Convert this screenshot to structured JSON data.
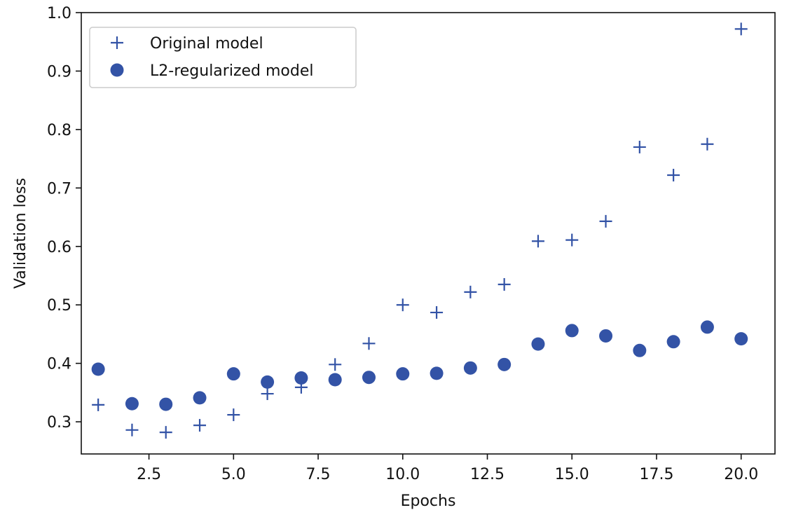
{
  "chart_data": {
    "type": "scatter",
    "xlabel": "Epochs",
    "ylabel": "Validation loss",
    "xlim": [
      0.5,
      21.0
    ],
    "ylim": [
      0.245,
      1.0
    ],
    "xticks": [
      2.5,
      5.0,
      7.5,
      10.0,
      12.5,
      15.0,
      17.5,
      20.0
    ],
    "xtick_labels": [
      "2.5",
      "5.0",
      "7.5",
      "10.0",
      "12.5",
      "15.0",
      "17.5",
      "20.0"
    ],
    "yticks": [
      0.3,
      0.4,
      0.5,
      0.6,
      0.7,
      0.8,
      0.9,
      1.0
    ],
    "ytick_labels": [
      "0.3",
      "0.4",
      "0.5",
      "0.6",
      "0.7",
      "0.8",
      "0.9",
      "1.0"
    ],
    "grid": false,
    "legend_position": "top-left",
    "colors": {
      "series": "#3353a6",
      "axes": "#111111"
    },
    "x": [
      1,
      2,
      3,
      4,
      5,
      6,
      7,
      8,
      9,
      10,
      11,
      12,
      13,
      14,
      15,
      16,
      17,
      18,
      19,
      20
    ],
    "series": [
      {
        "name": "Original model",
        "marker": "plus",
        "values": [
          0.329,
          0.286,
          0.282,
          0.294,
          0.312,
          0.348,
          0.359,
          0.398,
          0.434,
          0.5,
          0.487,
          0.522,
          0.535,
          0.609,
          0.611,
          0.643,
          0.77,
          0.722,
          0.775,
          0.972
        ]
      },
      {
        "name": "L2-regularized model",
        "marker": "circle",
        "values": [
          0.39,
          0.331,
          0.33,
          0.341,
          0.382,
          0.368,
          0.375,
          0.372,
          0.376,
          0.382,
          0.383,
          0.392,
          0.398,
          0.433,
          0.456,
          0.447,
          0.422,
          0.437,
          0.462,
          0.442
        ]
      }
    ]
  }
}
